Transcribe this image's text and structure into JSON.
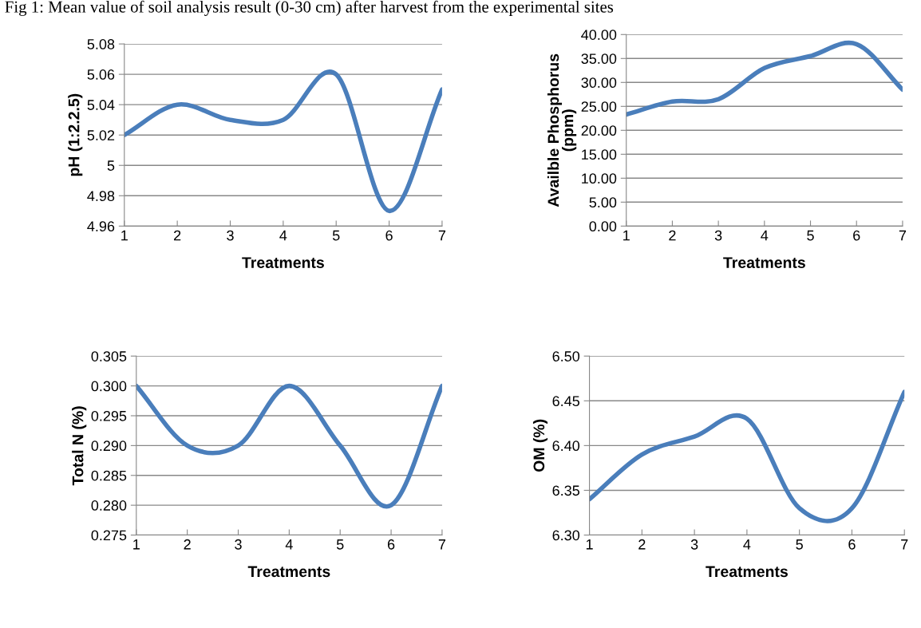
{
  "chart_data": [
    {
      "type": "line",
      "title": "Fig 1: Mean value of soil analysis result (0-30 cm) after harvest from the experimental sites",
      "xlabel": "Treatments",
      "ylabel": "pH (1:2.2.5)",
      "x": [
        1,
        2,
        3,
        4,
        5,
        6,
        7
      ],
      "series": [
        {
          "color": "#4a7ebb",
          "values": [
            5.02,
            5.04,
            5.03,
            5.03,
            5.06,
            4.97,
            5.05
          ]
        }
      ],
      "xlim": [
        1,
        7
      ],
      "xticks": [
        1,
        2,
        3,
        4,
        5,
        6,
        7
      ],
      "ylim": [
        4.96,
        5.08
      ],
      "yticks": [
        4.96,
        4.98,
        {
          "value": 5.0,
          "label": "5"
        },
        5.02,
        5.04,
        5.06,
        5.08
      ],
      "grid": "y"
    },
    {
      "type": "line",
      "xlabel": "Treatments",
      "ylabel": "Availble Phosphorus\n(ppm)",
      "x": [
        1,
        2,
        3,
        4,
        5,
        6,
        7
      ],
      "series": [
        {
          "color": "#4a7ebb",
          "values": [
            23.3,
            26.0,
            26.5,
            33.0,
            35.5,
            38.0,
            28.5
          ]
        }
      ],
      "xlim": [
        1,
        7
      ],
      "xticks": [
        1,
        2,
        3,
        4,
        5,
        6,
        7
      ],
      "ylim": [
        0,
        40
      ],
      "yticks": [
        {
          "value": 0,
          "label": "0.00"
        },
        {
          "value": 5,
          "label": "5.00"
        },
        {
          "value": 10,
          "label": "10.00"
        },
        {
          "value": 15,
          "label": "15.00"
        },
        {
          "value": 20,
          "label": "20.00"
        },
        {
          "value": 25,
          "label": "25.00"
        },
        {
          "value": 30,
          "label": "30.00"
        },
        {
          "value": 35,
          "label": "35.00"
        },
        {
          "value": 40,
          "label": "40.00"
        }
      ],
      "grid": "y"
    },
    {
      "type": "line",
      "xlabel": "Treatments",
      "ylabel": "Total N (%)",
      "x": [
        1,
        2,
        3,
        4,
        5,
        6,
        7
      ],
      "series": [
        {
          "color": "#4a7ebb",
          "values": [
            0.3,
            0.29,
            0.29,
            0.3,
            0.29,
            0.28,
            0.3
          ]
        }
      ],
      "xlim": [
        1,
        7
      ],
      "xticks": [
        1,
        2,
        3,
        4,
        5,
        6,
        7
      ],
      "ylim": [
        0.275,
        0.305
      ],
      "yticks": [
        0.275,
        {
          "value": 0.28,
          "label": "0.280"
        },
        0.285,
        {
          "value": 0.29,
          "label": "0.290"
        },
        0.295,
        {
          "value": 0.3,
          "label": "0.300"
        },
        0.305
      ],
      "grid": "y"
    },
    {
      "type": "line",
      "xlabel": "Treatments",
      "ylabel": "OM (%)",
      "x": [
        1,
        2,
        3,
        4,
        5,
        6,
        7
      ],
      "series": [
        {
          "color": "#4a7ebb",
          "values": [
            6.34,
            6.39,
            6.41,
            6.43,
            6.33,
            6.33,
            6.46
          ]
        }
      ],
      "xlim": [
        1,
        7
      ],
      "xticks": [
        1,
        2,
        3,
        4,
        5,
        6,
        7
      ],
      "ylim": [
        6.3,
        6.5
      ],
      "yticks": [
        {
          "value": 6.3,
          "label": "6.30"
        },
        6.35,
        {
          "value": 6.4,
          "label": "6.40"
        },
        6.45,
        {
          "value": 6.5,
          "label": "6.50"
        }
      ],
      "grid": "y"
    }
  ]
}
